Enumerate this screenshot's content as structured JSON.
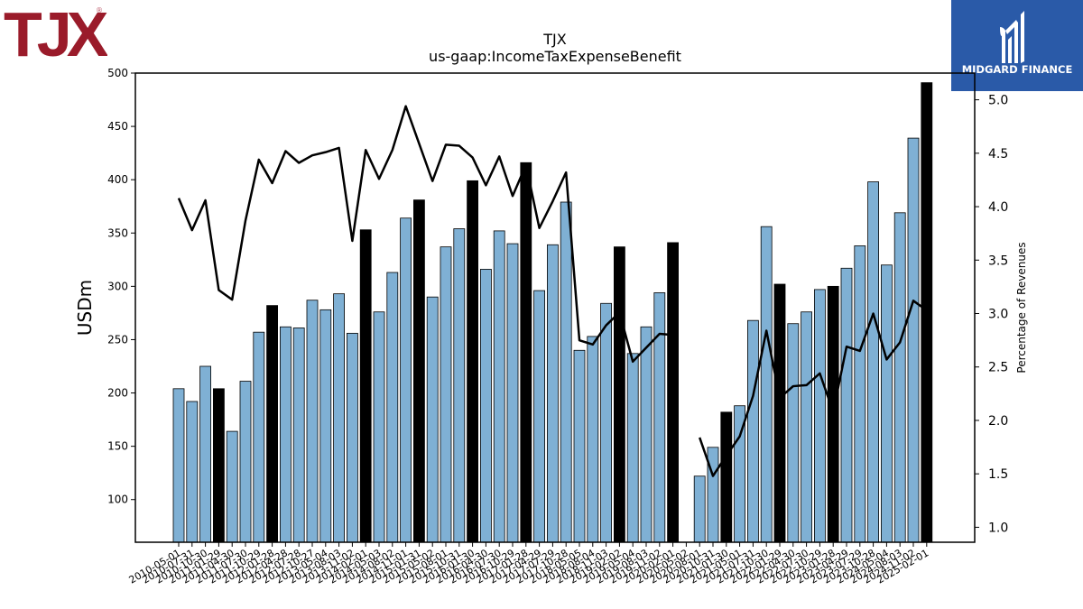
{
  "brand": {
    "left_logo_text": "TJX",
    "right_logo_text": "MIDGARD FINANCE",
    "left_color": "#9a1b2a",
    "right_color": "#2a5aa8"
  },
  "chart_data": {
    "type": "bar",
    "title": "TJX",
    "subtitle": "us-gaap:IncomeTaxExpenseBenefit",
    "ylabel": "USDm",
    "y2label": "Percentage of Revenues",
    "ylim": [
      60,
      500
    ],
    "y2lim": [
      0.86,
      5.25
    ],
    "yticks": [
      100,
      150,
      200,
      250,
      300,
      350,
      400,
      450,
      500
    ],
    "y2ticks": [
      "1.0",
      "1.5",
      "2.0",
      "2.5",
      "3.0",
      "3.5",
      "4.0",
      "4.5",
      "5.0"
    ],
    "bar_color": "#7fb0d4",
    "highlight_color": "#000000",
    "line_color": "#000000",
    "categories": [
      "2010-05-01",
      "2010-07-31",
      "2010-10-30",
      "2011-01-29",
      "2011-04-30",
      "2011-07-30",
      "2011-10-29",
      "2012-01-28",
      "2012-04-28",
      "2012-07-28",
      "2012-10-27",
      "2013-05-04",
      "2013-08-03",
      "2013-11-02",
      "2014-02-01",
      "2014-05-03",
      "2014-08-02",
      "2014-11-01",
      "2015-01-31",
      "2015-05-02",
      "2015-08-01",
      "2015-10-31",
      "2016-01-30",
      "2016-04-30",
      "2016-07-30",
      "2016-10-29",
      "2017-01-28",
      "2017-04-29",
      "2017-07-29",
      "2017-10-28",
      "2018-05-05",
      "2018-08-04",
      "2018-11-03",
      "2019-02-02",
      "2019-05-04",
      "2019-08-03",
      "2019-11-02",
      "2020-02-01",
      "2020-05-02",
      "2020-08-01",
      "2020-10-31",
      "2021-01-30",
      "2021-05-01",
      "2021-07-31",
      "2021-10-30",
      "2022-01-29",
      "2022-04-30",
      "2022-07-30",
      "2022-10-29",
      "2023-01-28",
      "2023-04-29",
      "2023-07-29",
      "2023-10-28",
      "2024-05-04",
      "2024-08-03",
      "2024-11-02",
      "2025-02-01"
    ],
    "xtick_labels": [
      "2010-05-01",
      "2010-07-31",
      "2010-10-30",
      "2011-01-29",
      "2011-04-30",
      "2011-07-30",
      "2011-10-29",
      "2012-01-28",
      "2012-04-28",
      "2012-07-28",
      "2012-10-27",
      "2013-05-04",
      "2013-08-03",
      "2013-11-02",
      "2014-02-01",
      "2014-05-03",
      "2014-08-02",
      "2014-11-01",
      "2015-01-31",
      "2015-05-02",
      "2015-08-01",
      "2015-10-31",
      "2016-01-30",
      "2016-04-30",
      "2016-07-30",
      "2016-10-29",
      "2017-01-28",
      "2017-04-29",
      "2017-07-29",
      "2017-10-28",
      "2018-05-05",
      "2018-08-04",
      "2018-11-03",
      "2019-02-02",
      "2019-05-04",
      "2019-08-03",
      "2019-11-02",
      "2020-02-01",
      "2020-05-02",
      "2020-08-01",
      "2020-10-31",
      "2021-01-30",
      "2021-05-01",
      "2021-07-31",
      "2021-10-30",
      "2022-01-29",
      "2022-04-30",
      "2022-07-30",
      "2022-10-29",
      "2023-01-28",
      "2023-04-29",
      "2023-07-29",
      "2023-10-28",
      "2024-05-04",
      "2024-08-03",
      "2024-11-02",
      "2025-02-01"
    ],
    "values": [
      204,
      192,
      225,
      204,
      164,
      211,
      257,
      282,
      262,
      261,
      287,
      278,
      293,
      256,
      353,
      276,
      313,
      364,
      381,
      290,
      337,
      354,
      399,
      316,
      352,
      340,
      416,
      296,
      339,
      379,
      240,
      253,
      284,
      337,
      237,
      262,
      294,
      341,
      null,
      122,
      149,
      182,
      188,
      268,
      356,
      302,
      265,
      276,
      297,
      300,
      317,
      338,
      398,
      320,
      369,
      439,
      491
    ],
    "highlight": [
      false,
      false,
      false,
      true,
      false,
      false,
      false,
      true,
      false,
      false,
      false,
      false,
      false,
      false,
      true,
      false,
      false,
      false,
      true,
      false,
      false,
      false,
      true,
      false,
      false,
      false,
      true,
      false,
      false,
      false,
      false,
      false,
      false,
      true,
      false,
      false,
      false,
      true,
      false,
      false,
      false,
      true,
      false,
      false,
      false,
      true,
      false,
      false,
      false,
      true,
      false,
      false,
      false,
      false,
      false,
      false,
      true
    ],
    "pct_of_revenues": [
      4.08,
      3.78,
      4.06,
      3.22,
      3.13,
      3.87,
      4.44,
      4.22,
      4.52,
      4.41,
      4.48,
      4.51,
      4.55,
      3.68,
      4.53,
      4.26,
      4.53,
      4.94,
      4.59,
      4.24,
      4.58,
      4.57,
      4.46,
      4.2,
      4.47,
      4.1,
      4.39,
      3.8,
      4.05,
      4.32,
      2.75,
      2.71,
      2.89,
      3.01,
      2.55,
      2.68,
      2.81,
      2.8,
      null,
      1.84,
      1.48,
      1.67,
      1.85,
      2.23,
      2.84,
      2.21,
      2.32,
      2.33,
      2.44,
      2.08,
      2.69,
      2.65,
      3.0,
      2.57,
      2.73,
      3.12,
      3.03
    ]
  }
}
